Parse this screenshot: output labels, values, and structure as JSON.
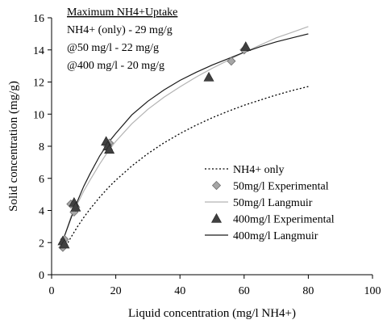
{
  "chart_data": {
    "type": "scatter",
    "title": "",
    "xlabel": "Liquid concentration (mg/l NH4+)",
    "ylabel": "Solid concentration (mg/g)",
    "xlim": [
      0,
      100
    ],
    "ylim": [
      0,
      16
    ],
    "xticks": [
      0,
      20,
      40,
      60,
      80,
      100
    ],
    "yticks": [
      0,
      2,
      4,
      6,
      8,
      10,
      12,
      14,
      16
    ],
    "grid": false,
    "legend_position": "right",
    "annotation": {
      "heading": "Maximum NH4+Uptake",
      "lines": [
        "NH4+ (only) -  29 mg/g",
        "@50 mg/l  -  22 mg/g",
        "@400 mg/l - 20 mg/g"
      ]
    },
    "series": [
      {
        "name": "NH4+ only",
        "kind": "line",
        "style": "dotted",
        "color": "#000000",
        "x": [
          4,
          5,
          6,
          8,
          10,
          12,
          15,
          18,
          20,
          25,
          30,
          35,
          40,
          45,
          50,
          55,
          60,
          65,
          70,
          75,
          80
        ],
        "y": [
          1.6,
          1.97,
          2.32,
          2.97,
          3.56,
          4.1,
          4.83,
          5.49,
          5.88,
          6.77,
          7.54,
          8.21,
          8.79,
          9.31,
          9.77,
          10.18,
          10.55,
          10.88,
          11.19,
          11.47,
          11.72
        ]
      },
      {
        "name": "50mg/l Experimental",
        "kind": "marker",
        "marker": "diamond",
        "color": "#a6a6a6",
        "x": [
          3.5,
          4.0,
          6.0,
          7.0,
          7.5,
          17.5,
          18.0,
          56.0,
          60.0
        ],
        "y": [
          1.7,
          2.2,
          4.4,
          3.9,
          4.2,
          8.0,
          8.2,
          13.3,
          14.0
        ]
      },
      {
        "name": "50mg/l Langmuir",
        "kind": "line",
        "style": "solid",
        "color": "#b3b3b3",
        "x": [
          3,
          4,
          5,
          6,
          8,
          10,
          12,
          15,
          18,
          20,
          25,
          30,
          35,
          40,
          45,
          50,
          55,
          60,
          65,
          70,
          75,
          80
        ],
        "y": [
          1.9,
          2.4,
          3.0,
          3.6,
          4.4,
          5.2,
          5.9,
          6.9,
          7.8,
          8.3,
          9.4,
          10.3,
          11.05,
          11.7,
          12.3,
          12.85,
          13.35,
          13.85,
          14.3,
          14.75,
          15.1,
          15.45
        ]
      },
      {
        "name": "400mg/l Experimental",
        "kind": "marker",
        "marker": "triangle",
        "color": "#404040",
        "x": [
          3.5,
          4.0,
          7.0,
          7.5,
          17.0,
          17.5,
          18.0,
          49.0,
          60.5
        ],
        "y": [
          2.1,
          1.9,
          4.5,
          4.2,
          8.3,
          8.0,
          7.8,
          12.3,
          14.2
        ]
      },
      {
        "name": "400mg/l Langmuir",
        "kind": "line",
        "style": "solid",
        "color": "#1a1a1a",
        "x": [
          3,
          4,
          5,
          6,
          8,
          10,
          12,
          15,
          18,
          20,
          25,
          30,
          35,
          40,
          45,
          50,
          55,
          60,
          65,
          70,
          75,
          80
        ],
        "y": [
          1.8,
          2.4,
          2.95,
          3.5,
          4.55,
          5.5,
          6.3,
          7.4,
          8.3,
          8.8,
          9.95,
          10.8,
          11.5,
          12.1,
          12.6,
          13.05,
          13.45,
          13.85,
          14.2,
          14.5,
          14.75,
          15.0
        ]
      }
    ]
  }
}
